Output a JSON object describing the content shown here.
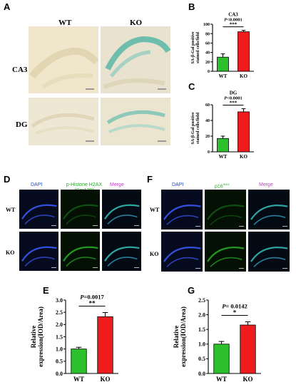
{
  "panelA": {
    "letter": "A",
    "col_labels": [
      "WT",
      "KO"
    ],
    "row_labels": [
      "CA3",
      "DG"
    ]
  },
  "panelB": {
    "letter": "B"
  },
  "panelC": {
    "letter": "C"
  },
  "panelD": {
    "letter": "D",
    "channels": [
      "DAPI",
      "p-Histone H2AX (Ser139)",
      "Merge"
    ],
    "rows": [
      "WT",
      "KO"
    ]
  },
  "panelE": {
    "letter": "E"
  },
  "panelF": {
    "letter": "F",
    "channels": [
      "DAPI",
      "p16",
      "INK4",
      "Merge"
    ],
    "rows": [
      "WT",
      "KO"
    ]
  },
  "panelG": {
    "letter": "G"
  },
  "colors": {
    "wt": "#2dc02d",
    "ko": "#ee1c1c",
    "dapi_label": "#1a4fd6",
    "green_label": "#1fae1f",
    "merge_label": "#c43fc4"
  },
  "chart_data": [
    {
      "id": "B",
      "type": "bar",
      "title": "CA3",
      "ylabel": [
        "SA-β-Gal positive",
        "stained cells/field"
      ],
      "categories": [
        "WT",
        "KO"
      ],
      "values": [
        30,
        84
      ],
      "errors": [
        7,
        3
      ],
      "ylim": [
        0,
        100
      ],
      "yticks": [
        0,
        20,
        40,
        60,
        80,
        100
      ],
      "pvalue": "P<0.0001",
      "stars": "***"
    },
    {
      "id": "C",
      "type": "bar",
      "title": "DG",
      "ylabel": [
        "SA-β-Gal positive",
        "stained cells/field"
      ],
      "categories": [
        "WT",
        "KO"
      ],
      "values": [
        17,
        51
      ],
      "errors": [
        3,
        4
      ],
      "ylim": [
        0,
        60
      ],
      "yticks": [
        0,
        20,
        40,
        60
      ],
      "pvalue": "P<0.0001",
      "stars": "***"
    },
    {
      "id": "E",
      "type": "bar",
      "title": "",
      "ylabel": [
        "Relative",
        "expression(IOD/Area)"
      ],
      "categories": [
        "WT",
        "KO"
      ],
      "values": [
        1.0,
        2.32
      ],
      "errors": [
        0.07,
        0.17
      ],
      "ylim": [
        0,
        3.0
      ],
      "yticks": [
        0.0,
        0.5,
        1.0,
        1.5,
        2.0,
        2.5,
        3.0
      ],
      "pvalue": "P=0.0017",
      "stars": "**"
    },
    {
      "id": "G",
      "type": "bar",
      "title": "",
      "ylabel": [
        "Relative",
        "expression(IOD/Area)"
      ],
      "categories": [
        "WT",
        "KO"
      ],
      "values": [
        1.0,
        1.65
      ],
      "errors": [
        0.09,
        0.11
      ],
      "ylim": [
        0,
        2.5
      ],
      "yticks": [
        0.0,
        0.5,
        1.0,
        1.5,
        2.0,
        2.5
      ],
      "pvalue": "P= 0.0142",
      "stars": "*"
    }
  ]
}
